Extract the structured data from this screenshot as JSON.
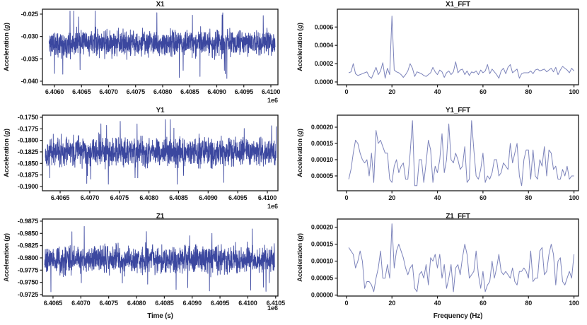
{
  "figure": {
    "background": "#ffffff",
    "text_color": "#1a1a1a",
    "timeseries_line_color": "#3b479f",
    "fft_line_color": "#7d84bb",
    "axis_color": "#1a1a1a"
  },
  "labels": {
    "ylabel_pre": "Acceleration (",
    "ylabel_var": "g",
    "ylabel_post": ")"
  },
  "chart_data": [
    {
      "id": "x1",
      "type": "line",
      "title": "X1",
      "ylabel": "Acceleration (g)",
      "x_offset": "1e6",
      "line_color": "#3b479f",
      "xlim": [
        6405778,
        6410131
      ],
      "ylim_top_to_bottom": [
        -0.0239,
        -0.0408
      ],
      "x_ticks": [
        {
          "v": 6406000,
          "label": "6.4060"
        },
        {
          "v": 6406500,
          "label": "6.4065"
        },
        {
          "v": 6407000,
          "label": "6.4070"
        },
        {
          "v": 6407500,
          "label": "6.4075"
        },
        {
          "v": 6408000,
          "label": "6.4080"
        },
        {
          "v": 6408500,
          "label": "6.4085"
        },
        {
          "v": 6409000,
          "label": "6.4090"
        },
        {
          "v": 6409500,
          "label": "6.4095"
        },
        {
          "v": 6410000,
          "label": "6.4100"
        }
      ],
      "y_ticks": [
        {
          "v": -0.025,
          "label": "-0.025"
        },
        {
          "v": -0.03,
          "label": "-0.030"
        },
        {
          "v": -0.035,
          "label": "-0.035"
        },
        {
          "v": -0.04,
          "label": "-0.040"
        }
      ],
      "signal": {
        "kind": "random-noise",
        "mean": -0.0315,
        "amp": 0.0042,
        "spike_amp": 0.008,
        "typical_band": [
          -0.0345,
          -0.0285
        ],
        "extremes": [
          -0.0398,
          -0.0243
        ],
        "x_range": [
          6405900,
          6410080
        ],
        "points": 1400
      }
    },
    {
      "id": "x1_fft",
      "type": "line",
      "title": "X1_FFT",
      "ylabel": "Acceleration (g)",
      "line_color": "#7d84bb",
      "xlim": [
        -4,
        102
      ],
      "ylim_top_to_bottom": [
        0.000795,
        -3.1e-05
      ],
      "x_ticks": [
        {
          "v": 0,
          "label": "0"
        },
        {
          "v": 20,
          "label": "20"
        },
        {
          "v": 40,
          "label": "40"
        },
        {
          "v": 60,
          "label": "60"
        },
        {
          "v": 80,
          "label": "80"
        },
        {
          "v": 100,
          "label": "100"
        }
      ],
      "y_ticks": [
        {
          "v": 0.0,
          "label": "0.0000"
        },
        {
          "v": 0.0002,
          "label": "0.0002"
        },
        {
          "v": 0.0004,
          "label": "0.0004"
        },
        {
          "v": 0.0006,
          "label": "0.0006"
        }
      ],
      "peak": {
        "frequency_hz": 20,
        "value": 0.00072
      },
      "series": {
        "x_start": 1,
        "x_step": 1,
        "values": [
          0.0001,
          0.00011,
          0.0002,
          9e-05,
          7e-05,
          8e-05,
          9e-05,
          0.0001,
          0.00011,
          6e-05,
          4e-05,
          0.0001,
          0.00016,
          8e-05,
          0.00012,
          0.00021,
          4e-05,
          0.00015,
          8e-05,
          0.00072,
          0.00013,
          0.00011,
          0.0001,
          8e-05,
          5e-05,
          8e-05,
          0.00012,
          0.0002,
          0.00015,
          6e-05,
          0.00011,
          0.0001,
          9e-05,
          7e-05,
          6e-05,
          8e-05,
          0.0001,
          0.00016,
          0.00011,
          8e-05,
          0.00013,
          0.00011,
          5e-05,
          0.0001,
          0.00012,
          8e-05,
          0.00011,
          0.00022,
          0.0001,
          0.00013,
          0.00014,
          8e-05,
          0.00012,
          7e-05,
          0.00011,
          0.0001,
          0.00012,
          8e-05,
          0.00013,
          0.0001,
          0.00012,
          0.00019,
          9e-05,
          0.00014,
          0.00011,
          8e-05,
          4e-05,
          0.00012,
          0.00015,
          9e-05,
          0.00016,
          0.00019,
          0.0001,
          0.00012,
          0.00014,
          4e-05,
          9e-05,
          0.0001,
          0.0001,
          0.0001,
          0.00012,
          9e-05,
          0.00013,
          0.00014,
          0.00012,
          0.00013,
          0.00014,
          0.00011,
          0.00013,
          0.00015,
          0.00011,
          0.00016,
          8e-05,
          0.00013,
          0.00017,
          0.00015,
          0.00013,
          0.0001,
          0.00015,
          0.00012
        ]
      }
    },
    {
      "id": "y1",
      "type": "line",
      "title": "Y1",
      "ylabel": "Acceleration (g)",
      "x_offset": "1e6",
      "line_color": "#3b479f",
      "xlim": [
        6406201,
        6410179
      ],
      "ylim_top_to_bottom": [
        -0.17454,
        -0.19093
      ],
      "x_ticks": [
        {
          "v": 6406500,
          "label": "6.4065"
        },
        {
          "v": 6407000,
          "label": "6.4070"
        },
        {
          "v": 6407500,
          "label": "6.4075"
        },
        {
          "v": 6408000,
          "label": "6.4080"
        },
        {
          "v": 6408500,
          "label": "6.4085"
        },
        {
          "v": 6409000,
          "label": "6.4090"
        },
        {
          "v": 6409500,
          "label": "6.4095"
        },
        {
          "v": 6410000,
          "label": "6.4100"
        }
      ],
      "y_ticks": [
        {
          "v": -0.175,
          "label": "-0.1750"
        },
        {
          "v": -0.1775,
          "label": "-0.1775"
        },
        {
          "v": -0.18,
          "label": "-0.1800"
        },
        {
          "v": -0.1825,
          "label": "-0.1825"
        },
        {
          "v": -0.185,
          "label": "-0.1850"
        },
        {
          "v": -0.1875,
          "label": "-0.1875"
        },
        {
          "v": -0.19,
          "label": "-0.1900"
        }
      ],
      "signal": {
        "kind": "random-noise",
        "mean": -0.1825,
        "amp": 0.0045,
        "spike_amp": 0.0072,
        "typical_band": [
          -0.186,
          -0.179
        ],
        "extremes": [
          -0.1899,
          -0.1755
        ],
        "x_range": [
          6406250,
          6410150
        ],
        "points": 1400
      }
    },
    {
      "id": "y1_fft",
      "type": "line",
      "title": "Y1_FFT",
      "ylabel": "Acceleration (g)",
      "line_color": "#7d84bb",
      "xlim": [
        -4,
        102
      ],
      "ylim_top_to_bottom": [
        0.000237,
        4.3e-06
      ],
      "x_ticks": [
        {
          "v": 0,
          "label": "0"
        },
        {
          "v": 20,
          "label": "20"
        },
        {
          "v": 40,
          "label": "40"
        },
        {
          "v": 60,
          "label": "60"
        },
        {
          "v": 80,
          "label": "80"
        },
        {
          "v": 100,
          "label": "100"
        }
      ],
      "y_ticks": [
        {
          "v": 5e-05,
          "label": "0.00005"
        },
        {
          "v": 0.0001,
          "label": "0.00010"
        },
        {
          "v": 0.00015,
          "label": "0.00015"
        },
        {
          "v": 0.0002,
          "label": "0.00020"
        }
      ],
      "series": {
        "x_start": 1,
        "x_step": 1,
        "values": [
          4e-05,
          7e-05,
          0.00012,
          0.00016,
          0.00015,
          0.00012,
          0.0001,
          9e-05,
          0.0001,
          5e-05,
          0.00012,
          3e-05,
          0.00019,
          0.00015,
          0.00016,
          0.00014,
          0.00012,
          0.00012,
          4e-05,
          3e-05,
          8e-05,
          0.0001,
          6e-05,
          8e-05,
          9e-05,
          4e-05,
          4e-05,
          0.00012,
          0.00022,
          2e-05,
          2e-05,
          0.0001,
          0.0001,
          3e-05,
          9e-05,
          0.00016,
          0.00013,
          3e-05,
          8e-05,
          6e-05,
          0.0001,
          0.00018,
          6e-05,
          0.0001,
          0.00021,
          0.0001,
          9e-05,
          0.00012,
          0.0001,
          7e-05,
          8e-05,
          0.00014,
          3e-05,
          4e-05,
          0.00022,
          0.00013,
          5e-05,
          4e-05,
          7e-05,
          0.00012,
          3e-05,
          5e-05,
          4e-05,
          6e-05,
          0.0001,
          0.0001,
          5e-05,
          6e-05,
          9e-05,
          8e-05,
          7e-05,
          0.00015,
          9e-05,
          0.00012,
          0.00015,
          5e-05,
          2e-05,
          0.0001,
          0.00013,
          0.00013,
          4e-05,
          0.00013,
          5e-05,
          4e-05,
          0.0001,
          8e-05,
          0.00014,
          5e-05,
          0.00013,
          0.00012,
          7e-05,
          8e-05,
          4e-05,
          4e-05,
          7e-05,
          5e-05,
          8e-05,
          4e-05,
          5e-05,
          5e-05
        ]
      }
    },
    {
      "id": "z1",
      "type": "line",
      "title": "Z1",
      "ylabel": "Acceleration (g)",
      "xlabel": "Time (s)",
      "x_offset": "1e6",
      "line_color": "#3b479f",
      "xlim": [
        6406310,
        6410541
      ],
      "ylim_top_to_bottom": [
        -0.98793,
        -0.97221
      ],
      "x_ticks": [
        {
          "v": 6406500,
          "label": "6.4065"
        },
        {
          "v": 6407000,
          "label": "6.4070"
        },
        {
          "v": 6407500,
          "label": "6.4075"
        },
        {
          "v": 6408000,
          "label": "6.4080"
        },
        {
          "v": 6408500,
          "label": "6.4085"
        },
        {
          "v": 6409000,
          "label": "6.4090"
        },
        {
          "v": 6409500,
          "label": "6.4095"
        },
        {
          "v": 6410000,
          "label": "6.4100"
        },
        {
          "v": 6410500,
          "label": "6.4105"
        }
      ],
      "y_ticks": [
        {
          "v": -0.9875,
          "label": "-0.9875"
        },
        {
          "v": -0.985,
          "label": "-0.9850"
        },
        {
          "v": -0.9825,
          "label": "-0.9825"
        },
        {
          "v": -0.98,
          "label": "-0.9800"
        },
        {
          "v": -0.9775,
          "label": "-0.9775"
        },
        {
          "v": -0.975,
          "label": "-0.9750"
        },
        {
          "v": -0.9725,
          "label": "-0.9725"
        }
      ],
      "signal": {
        "kind": "random-noise",
        "mean": -0.9797,
        "amp": 0.0042,
        "spike_amp": 0.0068,
        "typical_band": [
          -0.983,
          -0.9765
        ],
        "extremes": [
          -0.9865,
          -0.9728
        ],
        "x_range": [
          6406350,
          6410480
        ],
        "points": 1400
      }
    },
    {
      "id": "z1_fft",
      "type": "line",
      "title": "Z1_FFT",
      "ylabel": "Acceleration (g)",
      "xlabel": "Frequency (Hz)",
      "line_color": "#7d84bb",
      "xlim": [
        -4,
        102
      ],
      "ylim_top_to_bottom": [
        0.000224,
        -2.6e-06
      ],
      "x_ticks": [
        {
          "v": 0,
          "label": "0"
        },
        {
          "v": 20,
          "label": "20"
        },
        {
          "v": 40,
          "label": "40"
        },
        {
          "v": 60,
          "label": "60"
        },
        {
          "v": 80,
          "label": "80"
        },
        {
          "v": 100,
          "label": "100"
        }
      ],
      "y_ticks": [
        {
          "v": 0.0,
          "label": "0.00000"
        },
        {
          "v": 5e-05,
          "label": "0.00005"
        },
        {
          "v": 0.0001,
          "label": "0.00010"
        },
        {
          "v": 0.00015,
          "label": "0.00015"
        },
        {
          "v": 0.0002,
          "label": "0.00020"
        }
      ],
      "peak": {
        "frequency_hz": 20,
        "value": 0.00021
      },
      "series": {
        "x_start": 1,
        "x_step": 1,
        "values": [
          0.00014,
          0.00013,
          0.00012,
          8e-05,
          0.0001,
          0.00013,
          0.0001,
          2e-05,
          4e-05,
          4e-05,
          3e-05,
          1e-05,
          5e-05,
          8e-05,
          0.00013,
          5e-05,
          5e-05,
          9e-05,
          5e-05,
          0.00021,
          8e-05,
          0.00013,
          0.00015,
          0.00013,
          0.00011,
          8e-05,
          6e-05,
          8e-05,
          9e-05,
          2e-05,
          1e-05,
          6e-05,
          7e-05,
          5e-05,
          9e-05,
          3e-05,
          0.00011,
          0.0001,
          0.00012,
          8e-05,
          0.00012,
          5e-05,
          9e-05,
          2e-05,
          5e-05,
          9e-05,
          1e-05,
          8e-05,
          9e-05,
          6e-05,
          0.00011,
          0.00015,
          0.00012,
          5e-05,
          6e-05,
          7e-05,
          0.00013,
          6e-05,
          2e-05,
          7e-05,
          1e-05,
          3e-05,
          4e-05,
          0.0001,
          5e-05,
          8e-05,
          0.00012,
          7e-05,
          6e-05,
          7e-05,
          6e-05,
          5e-05,
          8e-05,
          4e-05,
          3e-05,
          7e-05,
          7e-05,
          8e-05,
          7e-05,
          5e-05,
          0.00013,
          4e-05,
          5e-05,
          5e-05,
          0.00013,
          0.00014,
          6e-05,
          7e-05,
          0.00012,
          0.00015,
          0.00012,
          3e-05,
          0.0001,
          0.00011,
          4e-05,
          3e-05,
          5e-05,
          7e-05,
          5e-05,
          0.00012
        ]
      }
    }
  ]
}
